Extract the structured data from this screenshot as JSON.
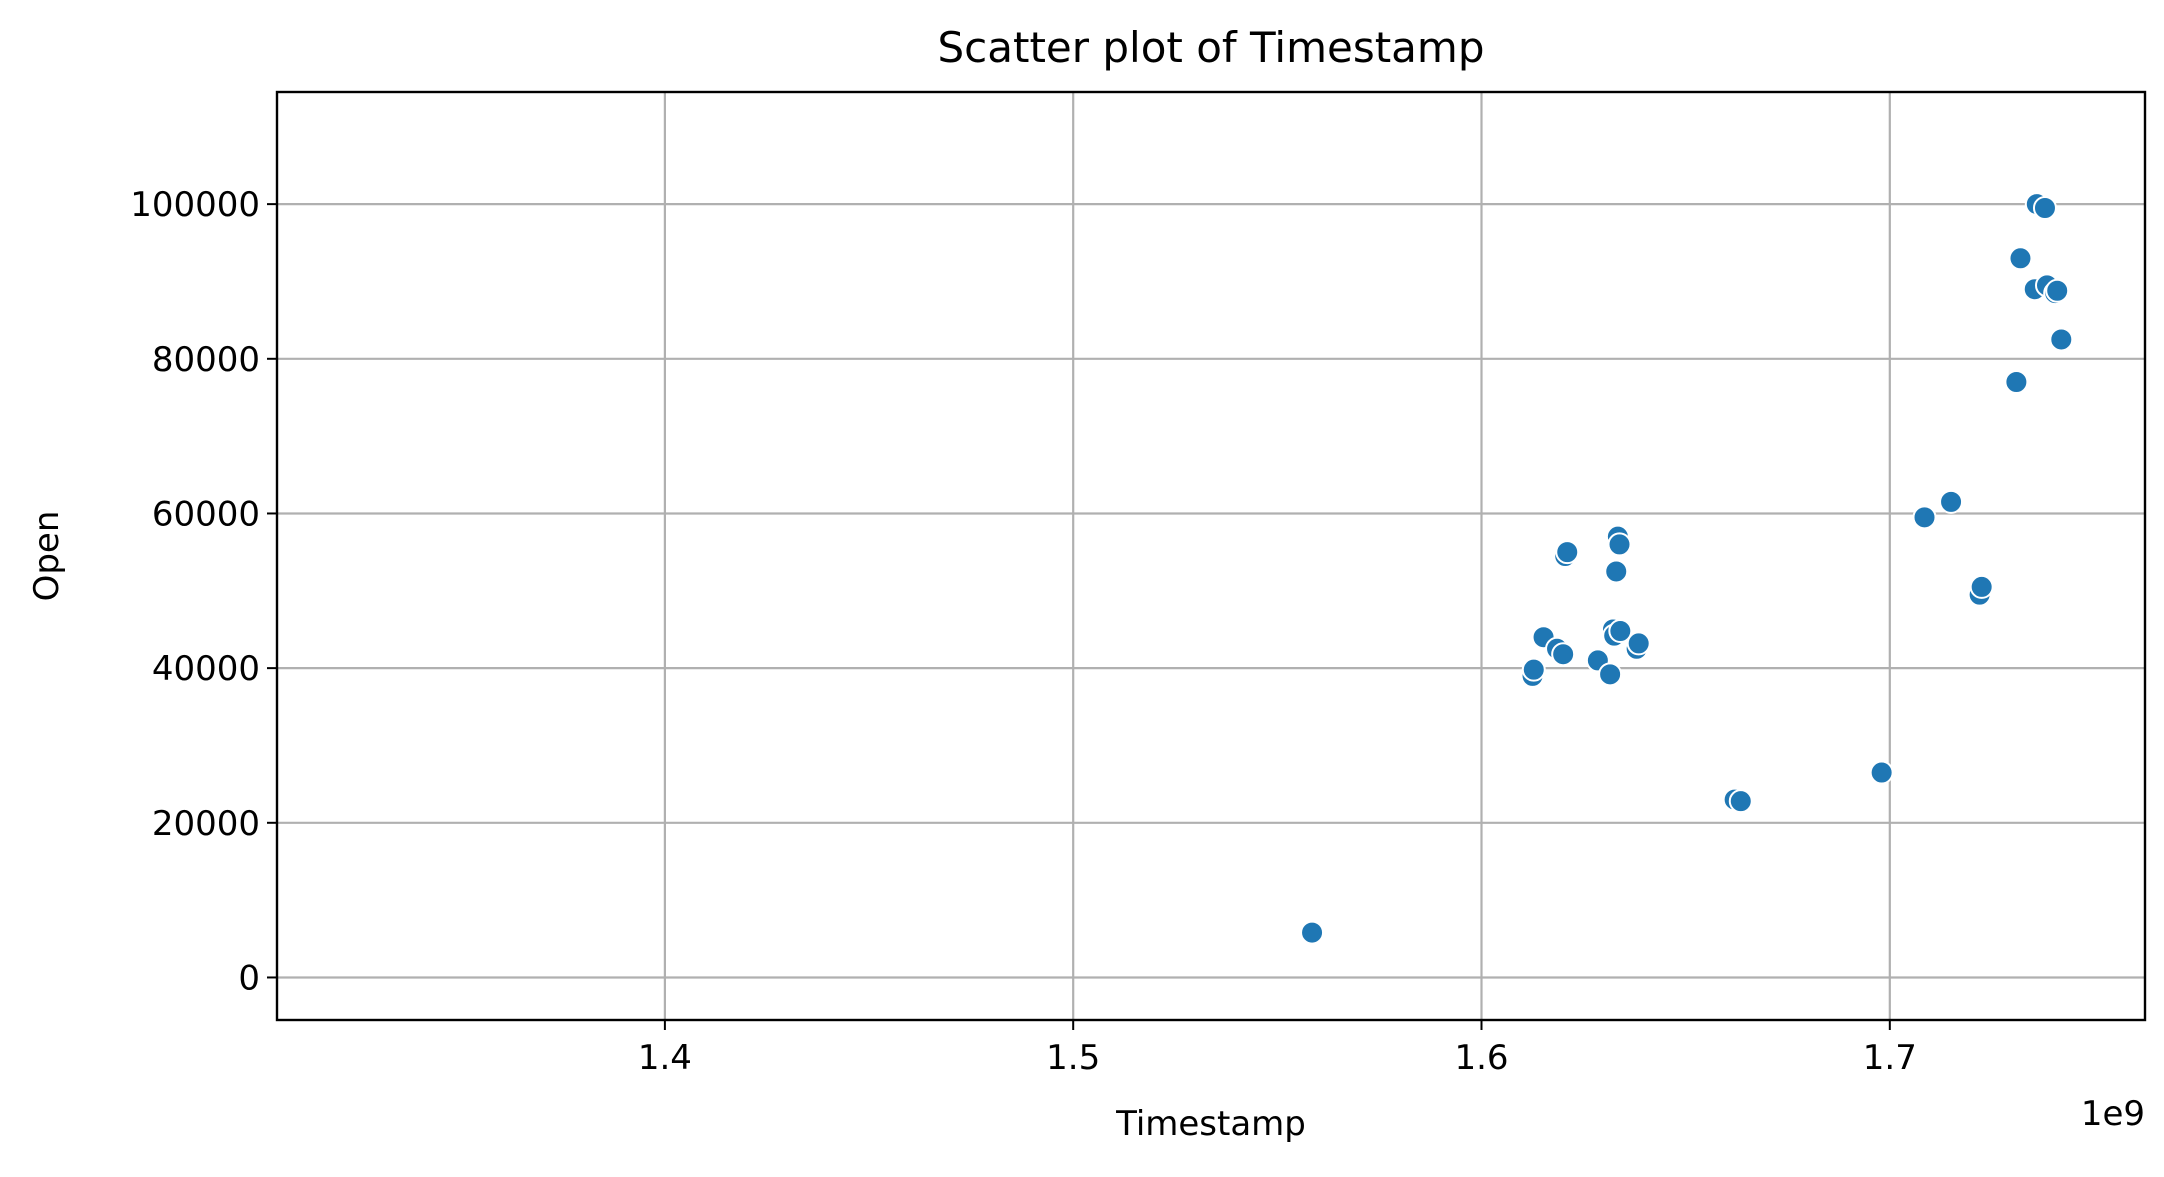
{
  "chart_data": {
    "type": "scatter",
    "title": "Scatter plot of Timestamp",
    "xlabel": "Timestamp",
    "ylabel": "Open",
    "x_offset_label": "1e9",
    "xlim": [
      1.305,
      1.7625
    ],
    "ylim": [
      -5500,
      114500
    ],
    "xticks": [
      1.4,
      1.5,
      1.6,
      1.7
    ],
    "xtick_labels": [
      "1.4",
      "1.5",
      "1.6",
      "1.7"
    ],
    "yticks": [
      0,
      20000,
      40000,
      60000,
      80000,
      100000
    ],
    "ytick_labels": [
      "0",
      "20000",
      "40000",
      "60000",
      "80000",
      "100000"
    ],
    "grid": true,
    "marker_color": "#1f77b4",
    "marker_edge_color": "#ffffff",
    "series": [
      {
        "x": [
          1.5585,
          1.6125,
          1.6128,
          1.6152,
          1.6185,
          1.62,
          1.6205,
          1.621,
          1.6285,
          1.6315,
          1.6322,
          1.6325,
          1.633,
          1.6334,
          1.6338,
          1.634,
          1.638,
          1.6385,
          1.662,
          1.6635,
          1.698,
          1.7085,
          1.715,
          1.722,
          1.7225,
          1.731,
          1.732,
          1.7355,
          1.736,
          1.738,
          1.7385,
          1.7405,
          1.741,
          1.742
        ],
        "y": [
          5800,
          39000,
          39800,
          44000,
          42500,
          41800,
          54500,
          55000,
          41000,
          39200,
          45000,
          44200,
          52500,
          57000,
          56000,
          44800,
          42500,
          43200,
          23000,
          22800,
          26500,
          59500,
          61500,
          49500,
          50500,
          77000,
          93000,
          89000,
          100000,
          99500,
          89500,
          88500,
          88800,
          82500
        ]
      }
    ]
  }
}
